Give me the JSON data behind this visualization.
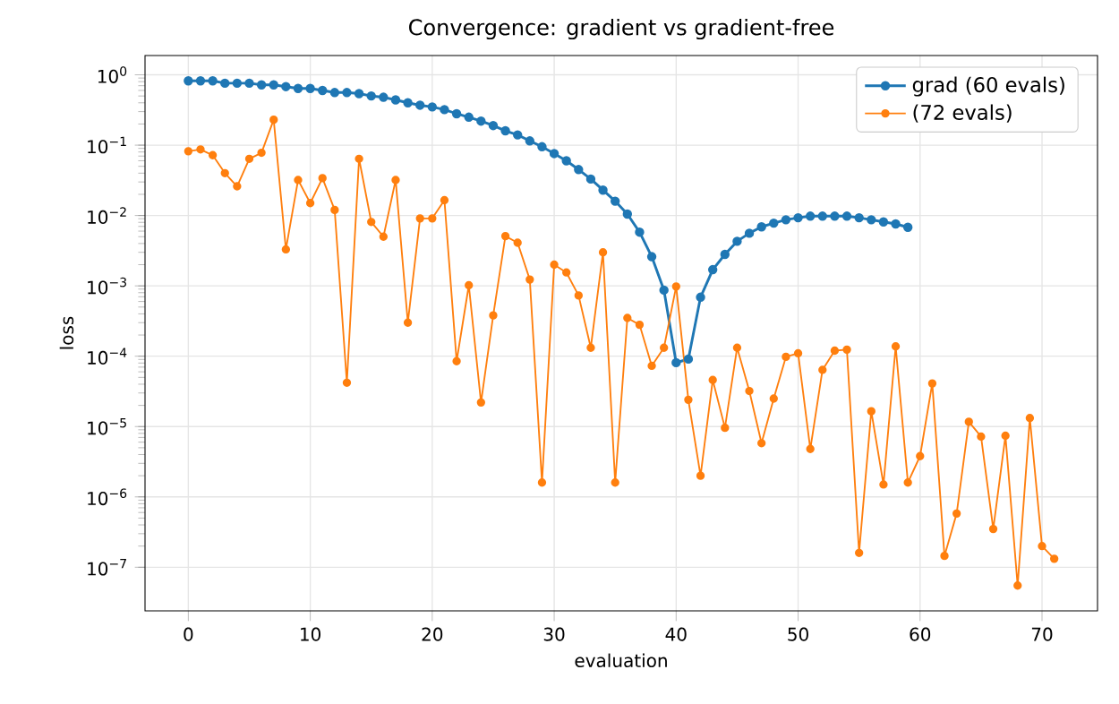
{
  "chart_data": {
    "type": "line",
    "title": "Convergence: gradient vs gradient-free",
    "xlabel": "evaluation",
    "ylabel": "loss",
    "log": "y",
    "grid": true,
    "legend": "top right",
    "marker": "circle",
    "line_style": "solid",
    "xlim": [
      -3.55,
      74.55
    ],
    "ylim": [
      2.4e-08,
      1.88
    ],
    "xticks": [
      0,
      10,
      20,
      30,
      40,
      50,
      60,
      70
    ],
    "yticks": [
      {
        "value": 1e-07,
        "label": "10$^{−7}$"
      },
      {
        "value": 1e-06,
        "label": "10$^{−6}$"
      },
      {
        "value": 1e-05,
        "label": "10$^{−5}$"
      },
      {
        "value": 0.0001,
        "label": "10$^{−4}$"
      },
      {
        "value": 0.001,
        "label": "10$^{−3}$"
      },
      {
        "value": 0.01,
        "label": "10$^{−2}$"
      },
      {
        "value": 0.1,
        "label": "10$^{−1}$"
      },
      {
        "value": 1,
        "label": "10$^{0}$"
      }
    ],
    "series": [
      {
        "name": "grad (60 evals)",
        "color": "#1f77b4",
        "x": [
          0,
          1,
          2,
          3,
          4,
          5,
          6,
          7,
          8,
          9,
          10,
          11,
          12,
          13,
          14,
          15,
          16,
          17,
          18,
          19,
          20,
          21,
          22,
          23,
          24,
          25,
          26,
          27,
          28,
          29,
          30,
          31,
          32,
          33,
          34,
          35,
          36,
          37,
          38,
          39,
          40,
          41,
          42,
          43,
          44,
          45,
          46,
          47,
          48,
          49,
          50,
          51,
          52,
          53,
          54,
          55,
          56,
          57,
          58,
          59
        ],
        "values": [
          0.82,
          0.82,
          0.82,
          0.76,
          0.76,
          0.76,
          0.72,
          0.72,
          0.68,
          0.64,
          0.64,
          0.6,
          0.56,
          0.56,
          0.54,
          0.5,
          0.48,
          0.44,
          0.4,
          0.37,
          0.35,
          0.32,
          0.28,
          0.25,
          0.22,
          0.19,
          0.16,
          0.14,
          0.115,
          0.095,
          0.076,
          0.06,
          0.045,
          0.033,
          0.023,
          0.016,
          0.0105,
          0.0058,
          0.0026,
          0.00087,
          8.1e-05,
          9.1e-05,
          0.00069,
          0.0017,
          0.0028,
          0.0043,
          0.0056,
          0.0069,
          0.0078,
          0.0087,
          0.0093,
          0.0098,
          0.0098,
          0.0098,
          0.0098,
          0.0093,
          0.0087,
          0.0081,
          0.0076,
          0.0068
        ]
      },
      {
        "name": "(72 evals)",
        "color": "#ff7f0e",
        "x": [
          0,
          1,
          2,
          3,
          4,
          5,
          6,
          7,
          8,
          9,
          10,
          11,
          12,
          13,
          14,
          15,
          16,
          17,
          18,
          19,
          20,
          21,
          22,
          23,
          24,
          25,
          26,
          27,
          28,
          29,
          30,
          31,
          32,
          33,
          34,
          35,
          36,
          37,
          38,
          39,
          40,
          41,
          42,
          43,
          44,
          45,
          46,
          47,
          48,
          49,
          50,
          51,
          52,
          53,
          54,
          55,
          56,
          57,
          58,
          59,
          60,
          61,
          62,
          63,
          64,
          65,
          66,
          67,
          68,
          69,
          70,
          71
        ],
        "values": [
          0.082,
          0.087,
          0.072,
          0.04,
          0.026,
          0.064,
          0.078,
          0.23,
          0.0033,
          0.032,
          0.015,
          0.034,
          0.012,
          4.2e-05,
          0.064,
          0.0081,
          0.005,
          0.032,
          0.0003,
          0.0091,
          0.0091,
          0.0165,
          8.5e-05,
          0.00102,
          2.2e-05,
          0.00038,
          0.0051,
          0.0041,
          0.00123,
          1.6e-06,
          0.002,
          0.00155,
          0.00073,
          0.000132,
          0.003,
          1.6e-06,
          0.00035,
          0.00028,
          7.3e-05,
          0.000132,
          0.00098,
          2.4e-05,
          2e-06,
          4.6e-05,
          9.6e-06,
          0.000132,
          3.2e-05,
          5.8e-06,
          2.5e-05,
          9.8e-05,
          0.00011,
          4.8e-06,
          6.4e-05,
          0.00012,
          0.000124,
          1.6e-07,
          1.65e-05,
          1.5e-06,
          0.000138,
          1.6e-06,
          3.8e-06,
          4.1e-05,
          1.45e-07,
          5.8e-07,
          1.17e-05,
          7.2e-06,
          3.5e-07,
          7.4e-06,
          5.5e-08,
          1.32e-05,
          2e-07,
          1.32e-07
        ]
      }
    ]
  }
}
